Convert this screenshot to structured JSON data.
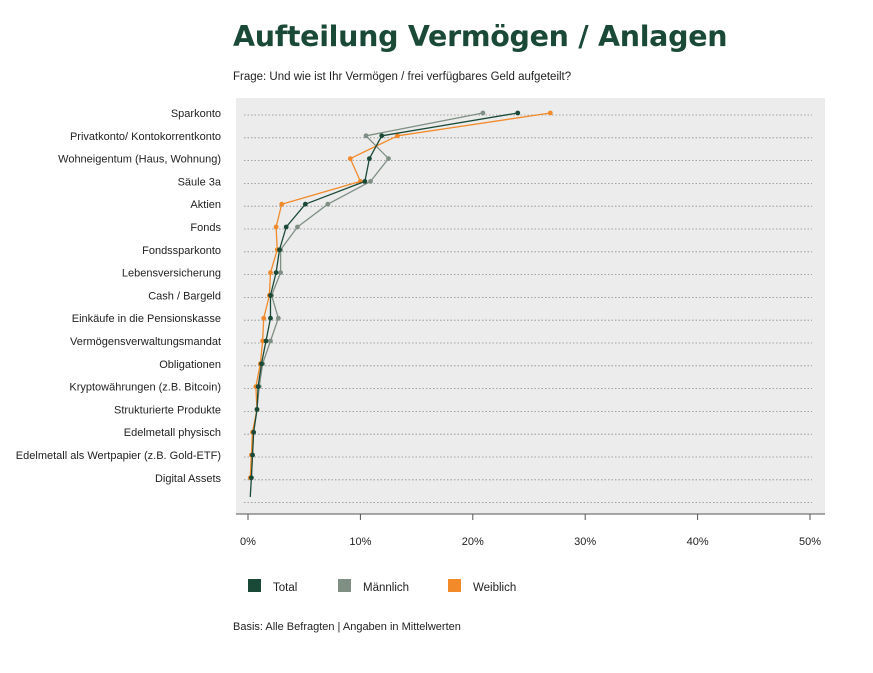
{
  "title": "Aufteilung Vermögen / Anlagen",
  "subtitle": "Frage: Und wie ist Ihr Vermögen / frei verfügbares Geld aufgeteilt?",
  "footnote": "Basis: Alle Befragten | Angaben in Mittelwerten",
  "colors": {
    "total": "#1a4a37",
    "maennlich": "#7f8f84",
    "weiblich": "#f28a2a",
    "title": "#1a4a37",
    "plot_background": "#ececec",
    "gridline": "#8a8a8a"
  },
  "chart_data": {
    "type": "line",
    "orientation": "horizontal",
    "categories": [
      "Sparkonto",
      "Privatkonto/ Kontokorrentkonto",
      "Wohneigentum (Haus, Wohnung)",
      "Säule 3a",
      "Aktien",
      "Fonds",
      "Fondssparkonto",
      "Lebensversicherung",
      "Cash / Bargeld",
      "Einkäufe in die Pensionskasse",
      "Vermögensverwaltungsmandat",
      "Obligationen",
      "Kryptowährungen (z.B. Bitcoin)",
      "Strukturierte Produkte",
      "Edelmetall physisch",
      "Edelmetall als Wertpapier (z.B. Gold-ETF)",
      "Digital Assets"
    ],
    "series": [
      {
        "name": "Total",
        "color_key": "total",
        "values": [
          24.0,
          11.9,
          10.8,
          10.4,
          5.1,
          3.4,
          2.8,
          2.5,
          2.0,
          2.0,
          1.6,
          1.2,
          0.9,
          0.8,
          0.5,
          0.4,
          0.3
        ]
      },
      {
        "name": "Männlich",
        "color_key": "maennlich",
        "values": [
          20.9,
          10.5,
          12.5,
          10.9,
          7.1,
          4.4,
          2.9,
          2.9,
          2.1,
          2.7,
          2.0,
          1.3,
          1.0,
          0.8,
          0.5,
          0.4,
          0.3
        ]
      },
      {
        "name": "Weiblich",
        "color_key": "weiblich",
        "values": [
          26.9,
          13.3,
          9.1,
          10.0,
          3.0,
          2.5,
          2.6,
          2.0,
          1.9,
          1.4,
          1.3,
          1.1,
          0.7,
          0.8,
          0.4,
          0.3,
          0.2
        ]
      }
    ],
    "xlim": [
      0,
      50
    ],
    "xticks": [
      "0%",
      "10%",
      "20%",
      "30%",
      "40%",
      "50%"
    ],
    "grid": "horizontal dotted",
    "legend_position": "bottom"
  }
}
